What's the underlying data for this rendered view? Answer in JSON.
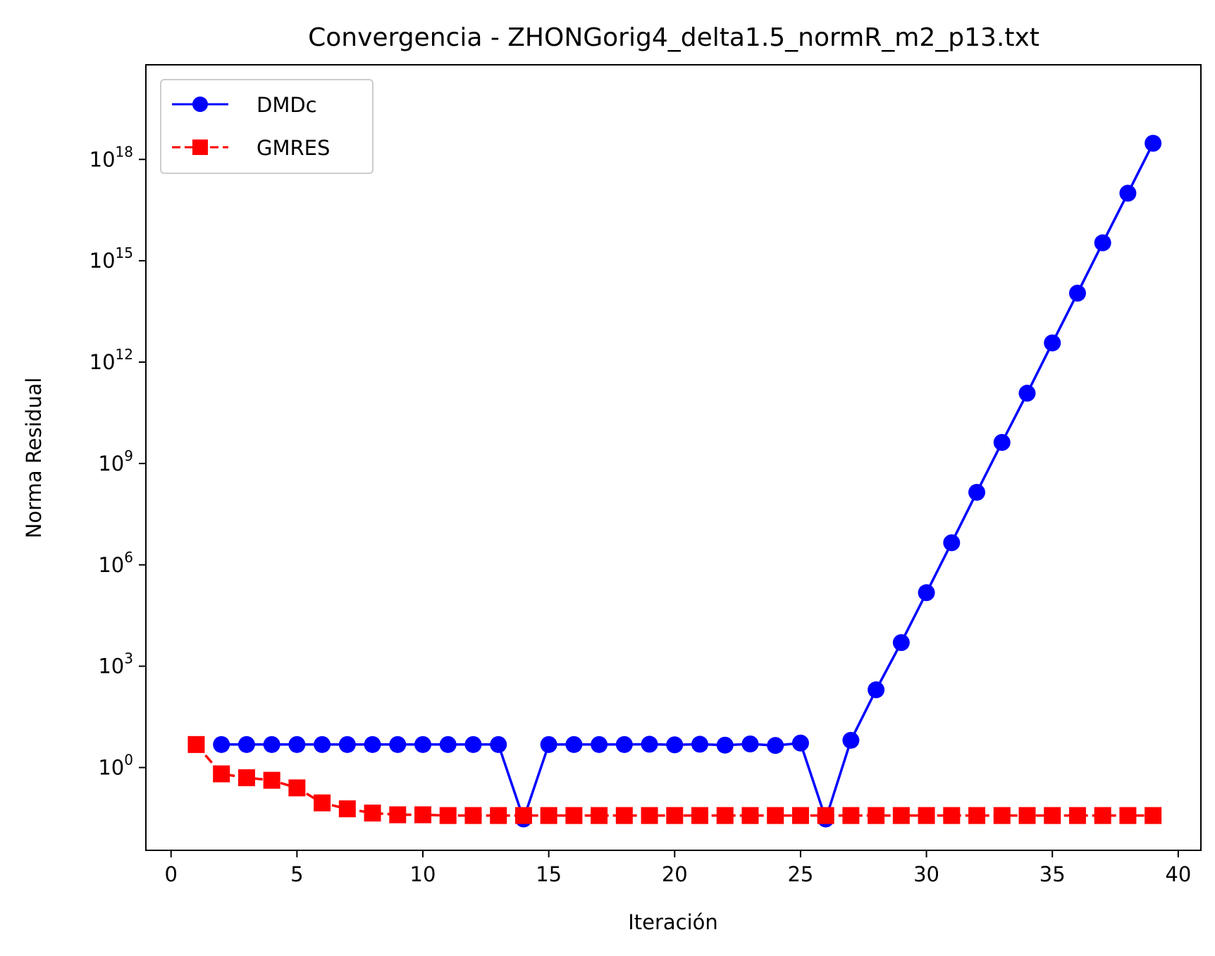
{
  "chart_data": {
    "type": "line",
    "title": "Convergencia - ZHONGorig4_delta1.5_normR_m2_p13.txt",
    "xlabel": "Iteración",
    "ylabel": "Norma Residual",
    "xlim": [
      -1,
      40.9
    ],
    "ylim_log10": [
      -2.45,
      20.8
    ],
    "yscale": "log",
    "x_ticks": [
      0,
      5,
      10,
      15,
      20,
      25,
      30,
      35,
      40
    ],
    "y_ticks": [
      {
        "exp": 0,
        "base": "10",
        "sup": "0"
      },
      {
        "exp": 3,
        "base": "10",
        "sup": "3"
      },
      {
        "exp": 6,
        "base": "10",
        "sup": "6"
      },
      {
        "exp": 9,
        "base": "10",
        "sup": "9"
      },
      {
        "exp": 12,
        "base": "10",
        "sup": "12"
      },
      {
        "exp": 15,
        "base": "10",
        "sup": "15"
      },
      {
        "exp": 18,
        "base": "10",
        "sup": "18"
      }
    ],
    "grid": false,
    "legend_position": "top-left",
    "series": [
      {
        "name": "DMDc",
        "color": "#0000ff",
        "line_style": "solid",
        "marker": "circle",
        "x": [
          2,
          3,
          4,
          5,
          6,
          7,
          8,
          9,
          10,
          11,
          12,
          13,
          14,
          15,
          16,
          17,
          18,
          19,
          20,
          21,
          22,
          23,
          24,
          25,
          26,
          27,
          28,
          29,
          30,
          31,
          32,
          33,
          34,
          35,
          36,
          37,
          38,
          39
        ],
        "y": [
          4.8,
          4.8,
          4.8,
          4.8,
          4.8,
          4.8,
          4.8,
          4.8,
          4.8,
          4.8,
          4.8,
          4.8,
          0.03,
          4.8,
          4.8,
          4.8,
          4.8,
          4.9,
          4.7,
          4.9,
          4.6,
          5.0,
          4.5,
          5.3,
          0.03,
          6.4,
          200,
          5000,
          150000,
          4500000,
          140000000,
          4200000000,
          120000000000,
          3700000000000,
          110000000000000,
          3400000000000000,
          100000000000000000,
          3000000000000000000
        ]
      },
      {
        "name": "GMRES",
        "color": "#ff0000",
        "line_style": "dashed",
        "marker": "square",
        "x": [
          1,
          2,
          3,
          4,
          5,
          6,
          7,
          8,
          9,
          10,
          11,
          12,
          13,
          14,
          15,
          16,
          17,
          18,
          19,
          20,
          21,
          22,
          23,
          24,
          25,
          26,
          27,
          28,
          29,
          30,
          31,
          32,
          33,
          34,
          35,
          36,
          37,
          38,
          39
        ],
        "y": [
          4.8,
          0.65,
          0.5,
          0.42,
          0.25,
          0.09,
          0.06,
          0.045,
          0.04,
          0.04,
          0.038,
          0.038,
          0.038,
          0.038,
          0.038,
          0.038,
          0.038,
          0.038,
          0.038,
          0.038,
          0.038,
          0.038,
          0.038,
          0.038,
          0.038,
          0.038,
          0.038,
          0.038,
          0.038,
          0.038,
          0.038,
          0.038,
          0.038,
          0.038,
          0.038,
          0.038,
          0.038,
          0.038,
          0.038
        ]
      }
    ]
  }
}
